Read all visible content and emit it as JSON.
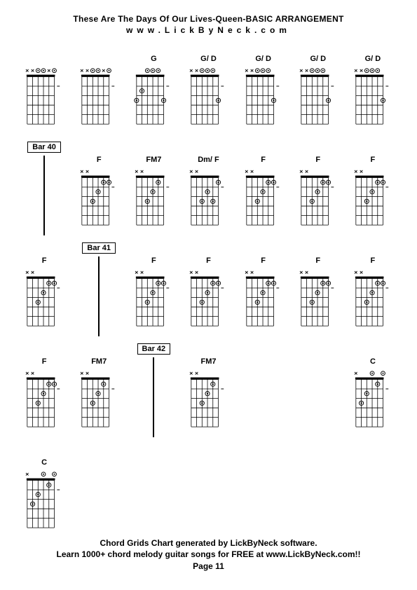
{
  "header": {
    "title": "These Are The Days Of Our Lives-Queen-BASIC ARRANGEMENT",
    "subtitle": "www.LickByNeck.com"
  },
  "footer": {
    "line1": "Chord Grids Chart generated by LickByNeck software.",
    "line2": "Learn 1000+ chord melody guitar songs for FREE at www.LickByNeck.com!!",
    "page": "Page 11"
  },
  "colors": {
    "bg": "#ffffff",
    "line": "#000000",
    "text": "#000000"
  },
  "cells": [
    {
      "type": "chord",
      "label": "",
      "nut": [
        "x",
        "x",
        "o",
        "o",
        "x",
        "o"
      ],
      "dots": [],
      "fret": null
    },
    {
      "type": "chord",
      "label": "",
      "nut": [
        "x",
        "x",
        "o",
        "o",
        "x",
        "o"
      ],
      "dots": [],
      "fret": null
    },
    {
      "type": "chord",
      "label": "G",
      "nut": [
        "",
        "",
        "o",
        "o",
        "o",
        ""
      ],
      "dots": [
        {
          "s": 6,
          "f": 3,
          "t": "d"
        },
        {
          "s": 5,
          "f": 2,
          "t": "d"
        },
        {
          "s": 1,
          "f": 3,
          "t": "d"
        }
      ],
      "fret": null
    },
    {
      "type": "chord",
      "label": "G/ D",
      "nut": [
        "x",
        "x",
        "o",
        "o",
        "o",
        ""
      ],
      "dots": [
        {
          "s": 1,
          "f": 3,
          "t": "d"
        }
      ],
      "fret": null
    },
    {
      "type": "chord",
      "label": "G/ D",
      "nut": [
        "x",
        "x",
        "o",
        "o",
        "o",
        ""
      ],
      "dots": [
        {
          "s": 1,
          "f": 3,
          "t": "d"
        }
      ],
      "fret": null
    },
    {
      "type": "chord",
      "label": "G/ D",
      "nut": [
        "x",
        "x",
        "o",
        "o",
        "o",
        ""
      ],
      "dots": [
        {
          "s": 1,
          "f": 3,
          "t": "d"
        }
      ],
      "fret": null
    },
    {
      "type": "chord",
      "label": "G/ D",
      "nut": [
        "x",
        "x",
        "o",
        "o",
        "o",
        ""
      ],
      "dots": [
        {
          "s": 1,
          "f": 3,
          "t": "d"
        }
      ],
      "fret": null
    },
    {
      "type": "bar",
      "label": "Bar 40"
    },
    {
      "type": "chord",
      "label": "F",
      "nut": [
        "x",
        "x",
        "",
        "",
        "",
        ""
      ],
      "dots": [
        {
          "s": 4,
          "f": 3,
          "t": "d"
        },
        {
          "s": 3,
          "f": 2,
          "t": "d"
        },
        {
          "s": 2,
          "f": 1,
          "t": "d"
        },
        {
          "s": 1,
          "f": 1,
          "t": "d"
        }
      ],
      "fret": null
    },
    {
      "type": "chord",
      "label": "FM7",
      "nut": [
        "x",
        "x",
        "",
        "",
        "",
        ""
      ],
      "dots": [
        {
          "s": 4,
          "f": 3,
          "t": "d"
        },
        {
          "s": 3,
          "f": 2,
          "t": "d"
        },
        {
          "s": 2,
          "f": 1,
          "t": "d"
        },
        {
          "s": 1,
          "f": 0,
          "t": "o"
        }
      ],
      "fret": null
    },
    {
      "type": "chord",
      "label": "Dm/ F",
      "nut": [
        "x",
        "x",
        "",
        "",
        "",
        ""
      ],
      "dots": [
        {
          "s": 4,
          "f": 3,
          "t": "d"
        },
        {
          "s": 3,
          "f": 2,
          "t": "d"
        },
        {
          "s": 2,
          "f": 3,
          "t": "d"
        },
        {
          "s": 1,
          "f": 1,
          "t": "d"
        }
      ],
      "fret": null
    },
    {
      "type": "chord",
      "label": "F",
      "nut": [
        "x",
        "x",
        "",
        "",
        "",
        ""
      ],
      "dots": [
        {
          "s": 4,
          "f": 3,
          "t": "d"
        },
        {
          "s": 3,
          "f": 2,
          "t": "d"
        },
        {
          "s": 2,
          "f": 1,
          "t": "d"
        },
        {
          "s": 1,
          "f": 1,
          "t": "d"
        }
      ],
      "fret": null
    },
    {
      "type": "chord",
      "label": "F",
      "nut": [
        "x",
        "x",
        "",
        "",
        "",
        ""
      ],
      "dots": [
        {
          "s": 4,
          "f": 3,
          "t": "d"
        },
        {
          "s": 3,
          "f": 2,
          "t": "d"
        },
        {
          "s": 2,
          "f": 1,
          "t": "d"
        },
        {
          "s": 1,
          "f": 1,
          "t": "d"
        }
      ],
      "fret": null
    },
    {
      "type": "chord",
      "label": "F",
      "nut": [
        "x",
        "x",
        "",
        "",
        "",
        ""
      ],
      "dots": [
        {
          "s": 4,
          "f": 3,
          "t": "d"
        },
        {
          "s": 3,
          "f": 2,
          "t": "d"
        },
        {
          "s": 2,
          "f": 1,
          "t": "d"
        },
        {
          "s": 1,
          "f": 1,
          "t": "d"
        }
      ],
      "fret": null
    },
    {
      "type": "chord",
      "label": "F",
      "nut": [
        "x",
        "x",
        "",
        "",
        "",
        ""
      ],
      "dots": [
        {
          "s": 4,
          "f": 3,
          "t": "d"
        },
        {
          "s": 3,
          "f": 2,
          "t": "d"
        },
        {
          "s": 2,
          "f": 1,
          "t": "d"
        },
        {
          "s": 1,
          "f": 1,
          "t": "d"
        }
      ],
      "fret": null
    },
    {
      "type": "bar",
      "label": "Bar 41"
    },
    {
      "type": "chord",
      "label": "F",
      "nut": [
        "x",
        "x",
        "",
        "",
        "",
        ""
      ],
      "dots": [
        {
          "s": 4,
          "f": 3,
          "t": "d"
        },
        {
          "s": 3,
          "f": 2,
          "t": "d"
        },
        {
          "s": 2,
          "f": 1,
          "t": "d"
        },
        {
          "s": 1,
          "f": 1,
          "t": "d"
        }
      ],
      "fret": null
    },
    {
      "type": "chord",
      "label": "F",
      "nut": [
        "x",
        "x",
        "",
        "",
        "",
        ""
      ],
      "dots": [
        {
          "s": 4,
          "f": 3,
          "t": "d"
        },
        {
          "s": 3,
          "f": 2,
          "t": "d"
        },
        {
          "s": 2,
          "f": 1,
          "t": "d"
        },
        {
          "s": 1,
          "f": 1,
          "t": "d"
        }
      ],
      "fret": null
    },
    {
      "type": "chord",
      "label": "F",
      "nut": [
        "x",
        "x",
        "",
        "",
        "",
        ""
      ],
      "dots": [
        {
          "s": 4,
          "f": 3,
          "t": "d"
        },
        {
          "s": 3,
          "f": 2,
          "t": "d"
        },
        {
          "s": 2,
          "f": 1,
          "t": "d"
        },
        {
          "s": 1,
          "f": 1,
          "t": "d"
        }
      ],
      "fret": null
    },
    {
      "type": "chord",
      "label": "F",
      "nut": [
        "x",
        "x",
        "",
        "",
        "",
        ""
      ],
      "dots": [
        {
          "s": 4,
          "f": 3,
          "t": "d"
        },
        {
          "s": 3,
          "f": 2,
          "t": "d"
        },
        {
          "s": 2,
          "f": 1,
          "t": "d"
        },
        {
          "s": 1,
          "f": 1,
          "t": "d"
        }
      ],
      "fret": null
    },
    {
      "type": "chord",
      "label": "F",
      "nut": [
        "x",
        "x",
        "",
        "",
        "",
        ""
      ],
      "dots": [
        {
          "s": 4,
          "f": 3,
          "t": "d"
        },
        {
          "s": 3,
          "f": 2,
          "t": "d"
        },
        {
          "s": 2,
          "f": 1,
          "t": "d"
        },
        {
          "s": 1,
          "f": 1,
          "t": "d"
        }
      ],
      "fret": null
    },
    {
      "type": "chord",
      "label": "F",
      "nut": [
        "x",
        "x",
        "",
        "",
        "",
        ""
      ],
      "dots": [
        {
          "s": 4,
          "f": 3,
          "t": "d"
        },
        {
          "s": 3,
          "f": 2,
          "t": "d"
        },
        {
          "s": 2,
          "f": 1,
          "t": "d"
        },
        {
          "s": 1,
          "f": 1,
          "t": "d"
        }
      ],
      "fret": null
    },
    {
      "type": "chord",
      "label": "FM7",
      "nut": [
        "x",
        "x",
        "",
        "",
        "",
        ""
      ],
      "dots": [
        {
          "s": 4,
          "f": 3,
          "t": "d"
        },
        {
          "s": 3,
          "f": 2,
          "t": "d"
        },
        {
          "s": 2,
          "f": 1,
          "t": "d"
        },
        {
          "s": 1,
          "f": 0,
          "t": "o"
        }
      ],
      "fret": null
    },
    {
      "type": "bar",
      "label": "Bar 42"
    },
    {
      "type": "chord",
      "label": "FM7",
      "nut": [
        "x",
        "x",
        "",
        "",
        "",
        ""
      ],
      "dots": [
        {
          "s": 4,
          "f": 3,
          "t": "d"
        },
        {
          "s": 3,
          "f": 2,
          "t": "d"
        },
        {
          "s": 2,
          "f": 1,
          "t": "d"
        },
        {
          "s": 1,
          "f": 0,
          "t": "o"
        }
      ],
      "fret": null
    },
    {
      "type": "empty"
    },
    {
      "type": "empty"
    },
    {
      "type": "chord",
      "label": "C",
      "nut": [
        "x",
        "",
        "",
        "o",
        "",
        "o"
      ],
      "dots": [
        {
          "s": 5,
          "f": 3,
          "t": "d"
        },
        {
          "s": 4,
          "f": 2,
          "t": "d"
        },
        {
          "s": 2,
          "f": 1,
          "t": "d"
        }
      ],
      "fret": null
    },
    {
      "type": "chord",
      "label": "C",
      "nut": [
        "x",
        "",
        "",
        "o",
        "",
        "o"
      ],
      "dots": [
        {
          "s": 5,
          "f": 3,
          "t": "d"
        },
        {
          "s": 4,
          "f": 2,
          "t": "d"
        },
        {
          "s": 2,
          "f": 1,
          "t": "d"
        }
      ],
      "fret": null
    }
  ]
}
